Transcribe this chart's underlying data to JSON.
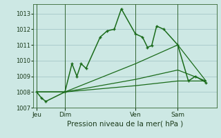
{
  "background_color": "#cde8e4",
  "grid_color": "#aacccc",
  "line_color": "#1a6b1a",
  "xlabel": "Pression niveau de la mer( hPa )",
  "ylim": [
    1007.0,
    1013.6
  ],
  "yticks": [
    1007,
    1008,
    1009,
    1010,
    1011,
    1012,
    1013
  ],
  "day_labels": [
    "Jeu",
    "Dim",
    "Ven",
    "Sam"
  ],
  "day_positions": [
    0.5,
    4.5,
    14.5,
    20.5
  ],
  "vline_positions": [
    0.5,
    4.5,
    14.5,
    20.5
  ],
  "xlim": [
    0,
    26
  ],
  "series1_x": [
    0.5,
    1.2,
    1.8,
    4.5,
    5.5,
    6.2,
    6.8,
    7.5,
    9.5,
    10.5,
    11.5,
    12.5,
    14.5,
    15.5,
    16.2,
    16.8,
    17.5,
    18.5,
    20.5,
    22.0,
    23.0,
    24.5
  ],
  "series1_y": [
    1008.0,
    1007.6,
    1007.4,
    1008.0,
    1009.8,
    1009.0,
    1009.8,
    1009.5,
    1011.5,
    1011.9,
    1012.0,
    1013.3,
    1011.7,
    1011.5,
    1010.85,
    1010.95,
    1012.2,
    1012.0,
    1011.0,
    1008.7,
    1009.0,
    1008.6
  ],
  "series2_x": [
    0.5,
    4.5,
    14.5,
    20.5,
    24.5
  ],
  "series2_y": [
    1008.0,
    1008.0,
    1008.4,
    1008.7,
    1008.7
  ],
  "series3_x": [
    0.5,
    4.5,
    14.5,
    20.5,
    24.5
  ],
  "series3_y": [
    1008.0,
    1008.0,
    1008.8,
    1009.4,
    1008.7
  ],
  "series4_x": [
    0.5,
    4.5,
    14.5,
    20.5,
    24.5
  ],
  "series4_y": [
    1008.0,
    1008.0,
    1009.8,
    1011.0,
    1008.7
  ]
}
